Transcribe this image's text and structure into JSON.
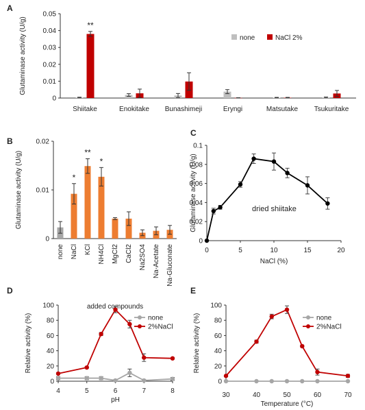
{
  "chart_data": [
    {
      "panel": "A",
      "type": "bar",
      "ylabel": "Glutaminase activity (U/g)",
      "ylim": [
        0,
        0.05
      ],
      "yticks": [
        "0",
        "0.01",
        "0.02",
        "0.03",
        "0.04",
        "0.05"
      ],
      "categories": [
        "Shiitake",
        "Enokitake",
        "Bunashimeji",
        "Eryngi",
        "Matsutake",
        "Tsukuritake"
      ],
      "legend_position": "right",
      "series": [
        {
          "name": "none",
          "color": "#bfbfbf",
          "values": [
            0.0003,
            0.0018,
            0.0015,
            0.0038,
            0.0002,
            0.0003
          ],
          "errors": [
            0.0002,
            0.0008,
            0.0012,
            0.0012,
            0.0002,
            0.0003
          ]
        },
        {
          "name": "NaCl 2%",
          "color": "#c00000",
          "values": [
            0.038,
            0.0028,
            0.0098,
            0.0001,
            0.0002,
            0.0027
          ],
          "errors": [
            0.0015,
            0.0025,
            0.0052,
            0.0001,
            0.0002,
            0.0018
          ]
        }
      ],
      "annotations": [
        {
          "category": "Shiitake",
          "series": 1,
          "text": "**"
        }
      ]
    },
    {
      "panel": "B",
      "type": "bar",
      "ylabel": "Glutaminase activity (U/g)",
      "xlabel": "added compounds",
      "ylim": [
        0,
        0.02
      ],
      "yticks": [
        "0",
        "0.01",
        "0.02"
      ],
      "categories": [
        "none",
        "NaCl",
        "KCl",
        "NH4Cl",
        "MgCl2",
        "CaCl2",
        "Na2SO4",
        "Na-Acetate",
        "Na-Gluconate"
      ],
      "series": [
        {
          "values": [
            0.0023,
            0.0092,
            0.0149,
            0.0127,
            0.0041,
            0.0041,
            0.0012,
            0.0016,
            0.0018
          ],
          "errors": [
            0.0012,
            0.0021,
            0.0015,
            0.0019,
            0.0002,
            0.0014,
            0.0006,
            0.0008,
            0.0009
          ]
        }
      ],
      "colors": [
        "#a6a6a6",
        "#ed7d31",
        "#ed7d31",
        "#ed7d31",
        "#ed7d31",
        "#ed7d31",
        "#ed7d31",
        "#ed7d31",
        "#ed7d31"
      ],
      "annotations": [
        {
          "category": "NaCl",
          "text": "*"
        },
        {
          "category": "KCl",
          "text": "**"
        },
        {
          "category": "NH4Cl",
          "text": "*"
        }
      ]
    },
    {
      "panel": "C",
      "type": "line",
      "ylabel": "Glutaminase activity (U/g)",
      "xlabel": "NaCl (%)",
      "xlim": [
        0,
        20
      ],
      "ylim": [
        0,
        0.1
      ],
      "xticks": [
        "0",
        "5",
        "10",
        "15",
        "20"
      ],
      "yticks": [
        "0",
        "0.02",
        "0.04",
        "0.06",
        "0.08",
        "0.1"
      ],
      "annotation": "dried shiitake",
      "series": [
        {
          "color": "#000000",
          "x": [
            0,
            1,
            2,
            5,
            7,
            10,
            12,
            15,
            18
          ],
          "values": [
            0,
            0.031,
            0.035,
            0.059,
            0.086,
            0.083,
            0.071,
            0.058,
            0.039
          ],
          "errors": [
            0,
            0.003,
            0.002,
            0.003,
            0.005,
            0.009,
            0.005,
            0.009,
            0.006
          ]
        }
      ]
    },
    {
      "panel": "D",
      "type": "line",
      "ylabel": "Relative activity (%)",
      "xlabel": "pH",
      "xlim": [
        4,
        8
      ],
      "ylim": [
        0,
        100
      ],
      "xticks": [
        "4",
        "5",
        "6",
        "7",
        "8"
      ],
      "yticks": [
        "0",
        "20",
        "40",
        "60",
        "80",
        "100"
      ],
      "legend_position": "top-right",
      "series": [
        {
          "name": "none",
          "color": "#a6a6a6",
          "x": [
            4,
            5,
            5.5,
            6,
            6.5,
            7,
            8
          ],
          "values": [
            4,
            4,
            4,
            1,
            11,
            1,
            3
          ],
          "errors": [
            2,
            2,
            2,
            1,
            5,
            1,
            2
          ]
        },
        {
          "name": "2%NaCl",
          "color": "#c00000",
          "x": [
            4,
            5,
            5.5,
            6,
            6.5,
            7,
            8
          ],
          "values": [
            10,
            18,
            62,
            94,
            75,
            31,
            30
          ],
          "errors": [
            1,
            1,
            2,
            4,
            5,
            5,
            1
          ]
        }
      ]
    },
    {
      "panel": "E",
      "type": "line",
      "ylabel": "Relative activity (%)",
      "xlabel": "Temperature (°C)",
      "xlim": [
        30,
        70
      ],
      "ylim": [
        0,
        100
      ],
      "xticks": [
        "30",
        "40",
        "50",
        "60",
        "70"
      ],
      "yticks": [
        "0",
        "20",
        "40",
        "60",
        "80",
        "100"
      ],
      "legend_position": "top-right",
      "series": [
        {
          "name": "none",
          "color": "#a6a6a6",
          "x": [
            30,
            40,
            45,
            50,
            55,
            60,
            70
          ],
          "values": [
            0,
            0,
            0,
            0,
            0,
            0,
            0
          ],
          "errors": [
            0,
            0,
            0,
            0,
            0,
            0,
            0
          ]
        },
        {
          "name": "2%NaCl",
          "color": "#c00000",
          "x": [
            30,
            40,
            45,
            50,
            55,
            60,
            70
          ],
          "values": [
            7,
            52,
            85,
            94,
            46,
            12,
            7
          ],
          "errors": [
            1,
            2,
            3,
            5,
            1,
            4,
            2
          ]
        }
      ]
    }
  ]
}
